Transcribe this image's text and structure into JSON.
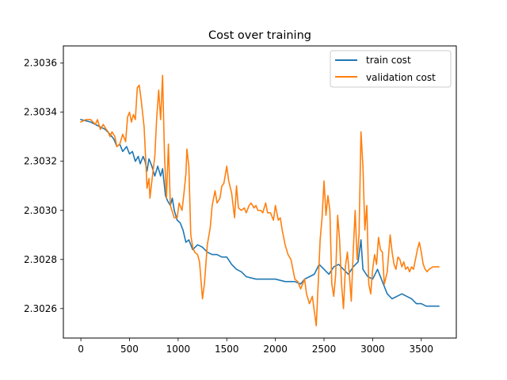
{
  "chart_data": {
    "type": "line",
    "title": "Cost over training",
    "xlabel": "",
    "ylabel": "",
    "xlim": [
      -180,
      3860
    ],
    "ylim": [
      2.30248,
      2.30367
    ],
    "xticks": [
      0,
      500,
      1000,
      1500,
      2000,
      2500,
      3000,
      3500
    ],
    "yticks": [
      2.3026,
      2.3028,
      2.303,
      2.3032,
      2.3034,
      2.3036
    ],
    "ytick_labels": [
      "2.3026",
      "2.3028",
      "2.3030",
      "2.3032",
      "2.3034",
      "2.3036"
    ],
    "grid": false,
    "legend_position": "top-right",
    "series": [
      {
        "name": "train cost",
        "color": "#1f77b4",
        "points": [
          [
            0,
            2.30337
          ],
          [
            100,
            2.30336
          ],
          [
            150,
            2.30335
          ],
          [
            200,
            2.30334
          ],
          [
            250,
            2.30333
          ],
          [
            300,
            2.30331
          ],
          [
            340,
            2.30329
          ],
          [
            370,
            2.30326
          ],
          [
            400,
            2.30327
          ],
          [
            430,
            2.30324
          ],
          [
            470,
            2.30326
          ],
          [
            500,
            2.30323
          ],
          [
            530,
            2.30324
          ],
          [
            560,
            2.3032
          ],
          [
            590,
            2.30322
          ],
          [
            610,
            2.30319
          ],
          [
            640,
            2.30322
          ],
          [
            660,
            2.3032
          ],
          [
            680,
            2.30316
          ],
          [
            700,
            2.30321
          ],
          [
            730,
            2.30318
          ],
          [
            760,
            2.30314
          ],
          [
            790,
            2.30318
          ],
          [
            820,
            2.30314
          ],
          [
            840,
            2.30317
          ],
          [
            870,
            2.30306
          ],
          [
            890,
            2.30304
          ],
          [
            920,
            2.30302
          ],
          [
            940,
            2.30305
          ],
          [
            960,
            2.303
          ],
          [
            990,
            2.30296
          ],
          [
            1020,
            2.30295
          ],
          [
            1050,
            2.30292
          ],
          [
            1080,
            2.30287
          ],
          [
            1110,
            2.30288
          ],
          [
            1150,
            2.30284
          ],
          [
            1200,
            2.30286
          ],
          [
            1250,
            2.30285
          ],
          [
            1300,
            2.30283
          ],
          [
            1350,
            2.30282
          ],
          [
            1400,
            2.30282
          ],
          [
            1450,
            2.30281
          ],
          [
            1500,
            2.30281
          ],
          [
            1550,
            2.30278
          ],
          [
            1600,
            2.30276
          ],
          [
            1650,
            2.30275
          ],
          [
            1700,
            2.30273
          ],
          [
            1800,
            2.30272
          ],
          [
            1900,
            2.30272
          ],
          [
            2000,
            2.30272
          ],
          [
            2100,
            2.30271
          ],
          [
            2200,
            2.30271
          ],
          [
            2260,
            2.3027
          ],
          [
            2300,
            2.30272
          ],
          [
            2350,
            2.30273
          ],
          [
            2400,
            2.30274
          ],
          [
            2450,
            2.30278
          ],
          [
            2500,
            2.30276
          ],
          [
            2550,
            2.30274
          ],
          [
            2600,
            2.30277
          ],
          [
            2650,
            2.30278
          ],
          [
            2700,
            2.30276
          ],
          [
            2750,
            2.30274
          ],
          [
            2800,
            2.30277
          ],
          [
            2850,
            2.30279
          ],
          [
            2880,
            2.30288
          ],
          [
            2900,
            2.30276
          ],
          [
            2950,
            2.30273
          ],
          [
            3000,
            2.30272
          ],
          [
            3050,
            2.30276
          ],
          [
            3100,
            2.30271
          ],
          [
            3150,
            2.30266
          ],
          [
            3200,
            2.30264
          ],
          [
            3250,
            2.30265
          ],
          [
            3300,
            2.30266
          ],
          [
            3350,
            2.30265
          ],
          [
            3400,
            2.30264
          ],
          [
            3450,
            2.30262
          ],
          [
            3500,
            2.30262
          ],
          [
            3550,
            2.30261
          ],
          [
            3600,
            2.30261
          ],
          [
            3680,
            2.30261
          ]
        ]
      },
      {
        "name": "validation cost",
        "color": "#ff7f0e",
        "points": [
          [
            0,
            2.30336
          ],
          [
            50,
            2.30337
          ],
          [
            100,
            2.30337
          ],
          [
            150,
            2.30335
          ],
          [
            170,
            2.30337
          ],
          [
            200,
            2.30333
          ],
          [
            230,
            2.30335
          ],
          [
            260,
            2.30333
          ],
          [
            280,
            2.30332
          ],
          [
            300,
            2.3033
          ],
          [
            320,
            2.30332
          ],
          [
            350,
            2.3033
          ],
          [
            370,
            2.30326
          ],
          [
            400,
            2.30327
          ],
          [
            430,
            2.30331
          ],
          [
            460,
            2.30328
          ],
          [
            480,
            2.30338
          ],
          [
            500,
            2.3034
          ],
          [
            520,
            2.30336
          ],
          [
            540,
            2.30339
          ],
          [
            560,
            2.30337
          ],
          [
            580,
            2.3035
          ],
          [
            600,
            2.30351
          ],
          [
            620,
            2.30345
          ],
          [
            650,
            2.30334
          ],
          [
            670,
            2.30318
          ],
          [
            680,
            2.30309
          ],
          [
            700,
            2.30313
          ],
          [
            710,
            2.30305
          ],
          [
            730,
            2.30312
          ],
          [
            760,
            2.30322
          ],
          [
            780,
            2.30338
          ],
          [
            800,
            2.30349
          ],
          [
            820,
            2.30337
          ],
          [
            840,
            2.30355
          ],
          [
            860,
            2.30322
          ],
          [
            880,
            2.30305
          ],
          [
            900,
            2.30327
          ],
          [
            920,
            2.30302
          ],
          [
            960,
            2.30297
          ],
          [
            990,
            2.30297
          ],
          [
            1010,
            2.30303
          ],
          [
            1040,
            2.303
          ],
          [
            1060,
            2.30307
          ],
          [
            1080,
            2.30315
          ],
          [
            1090,
            2.30325
          ],
          [
            1110,
            2.30318
          ],
          [
            1130,
            2.3029
          ],
          [
            1150,
            2.30285
          ],
          [
            1170,
            2.30283
          ],
          [
            1200,
            2.30282
          ],
          [
            1220,
            2.30279
          ],
          [
            1250,
            2.30264
          ],
          [
            1270,
            2.3027
          ],
          [
            1300,
            2.30286
          ],
          [
            1330,
            2.30293
          ],
          [
            1350,
            2.30302
          ],
          [
            1380,
            2.30308
          ],
          [
            1400,
            2.30303
          ],
          [
            1430,
            2.30305
          ],
          [
            1450,
            2.3031
          ],
          [
            1470,
            2.30311
          ],
          [
            1500,
            2.30318
          ],
          [
            1520,
            2.30312
          ],
          [
            1550,
            2.30307
          ],
          [
            1580,
            2.30297
          ],
          [
            1600,
            2.3031
          ],
          [
            1620,
            2.30301
          ],
          [
            1650,
            2.303
          ],
          [
            1680,
            2.30301
          ],
          [
            1700,
            2.30299
          ],
          [
            1730,
            2.30302
          ],
          [
            1750,
            2.30303
          ],
          [
            1780,
            2.30301
          ],
          [
            1800,
            2.30302
          ],
          [
            1820,
            2.303
          ],
          [
            1850,
            2.303
          ],
          [
            1870,
            2.30299
          ],
          [
            1900,
            2.30303
          ],
          [
            1920,
            2.30299
          ],
          [
            1950,
            2.30299
          ],
          [
            1980,
            2.30296
          ],
          [
            2000,
            2.30302
          ],
          [
            2030,
            2.30296
          ],
          [
            2050,
            2.30297
          ],
          [
            2070,
            2.30292
          ],
          [
            2100,
            2.30286
          ],
          [
            2130,
            2.30282
          ],
          [
            2160,
            2.3028
          ],
          [
            2180,
            2.30276
          ],
          [
            2200,
            2.30272
          ],
          [
            2230,
            2.30271
          ],
          [
            2260,
            2.30268
          ],
          [
            2300,
            2.30272
          ],
          [
            2320,
            2.30266
          ],
          [
            2350,
            2.30262
          ],
          [
            2380,
            2.30265
          ],
          [
            2400,
            2.30259
          ],
          [
            2420,
            2.30253
          ],
          [
            2440,
            2.3027
          ],
          [
            2460,
            2.30288
          ],
          [
            2480,
            2.30297
          ],
          [
            2500,
            2.30312
          ],
          [
            2520,
            2.30298
          ],
          [
            2540,
            2.30306
          ],
          [
            2560,
            2.303
          ],
          [
            2580,
            2.3027
          ],
          [
            2600,
            2.30265
          ],
          [
            2620,
            2.30274
          ],
          [
            2640,
            2.30298
          ],
          [
            2660,
            2.30288
          ],
          [
            2680,
            2.3027
          ],
          [
            2700,
            2.3026
          ],
          [
            2720,
            2.30277
          ],
          [
            2740,
            2.30283
          ],
          [
            2760,
            2.30274
          ],
          [
            2780,
            2.30263
          ],
          [
            2800,
            2.30283
          ],
          [
            2820,
            2.303
          ],
          [
            2840,
            2.3028
          ],
          [
            2860,
            2.3029
          ],
          [
            2880,
            2.30332
          ],
          [
            2900,
            2.30318
          ],
          [
            2920,
            2.30292
          ],
          [
            2940,
            2.30302
          ],
          [
            2960,
            2.3027
          ],
          [
            2980,
            2.30266
          ],
          [
            3000,
            2.30276
          ],
          [
            3020,
            2.30282
          ],
          [
            3040,
            2.30278
          ],
          [
            3060,
            2.30289
          ],
          [
            3080,
            2.30284
          ],
          [
            3100,
            2.30283
          ],
          [
            3120,
            2.3027
          ],
          [
            3150,
            2.30275
          ],
          [
            3180,
            2.3029
          ],
          [
            3200,
            2.30283
          ],
          [
            3220,
            2.30278
          ],
          [
            3240,
            2.30276
          ],
          [
            3260,
            2.30281
          ],
          [
            3280,
            2.3028
          ],
          [
            3300,
            2.30277
          ],
          [
            3320,
            2.30279
          ],
          [
            3340,
            2.30276
          ],
          [
            3360,
            2.30277
          ],
          [
            3380,
            2.30275
          ],
          [
            3400,
            2.30277
          ],
          [
            3420,
            2.30276
          ],
          [
            3440,
            2.3028
          ],
          [
            3460,
            2.30284
          ],
          [
            3480,
            2.30287
          ],
          [
            3500,
            2.30283
          ],
          [
            3520,
            2.30278
          ],
          [
            3540,
            2.30276
          ],
          [
            3560,
            2.30275
          ],
          [
            3580,
            2.30276
          ],
          [
            3620,
            2.30277
          ],
          [
            3680,
            2.30277
          ]
        ]
      }
    ]
  }
}
